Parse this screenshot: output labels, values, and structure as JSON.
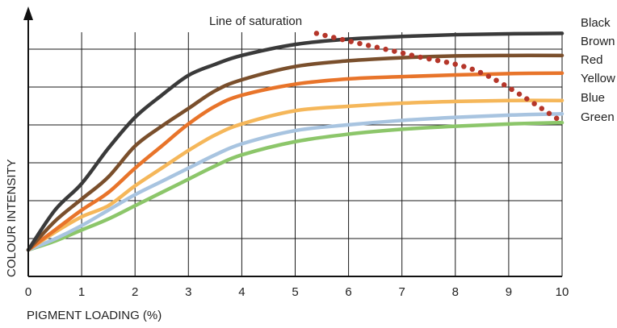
{
  "chart_data": {
    "type": "line",
    "xlabel": "PIGMENT LOADING (%)",
    "ylabel": "COLOUR INTENSITY",
    "xlim": [
      0,
      10
    ],
    "ylim": [
      0,
      6
    ],
    "x_ticks": [
      "0",
      "1",
      "2",
      "3",
      "4",
      "5",
      "6",
      "7",
      "8",
      "9",
      "10"
    ],
    "grid": true,
    "legend_position": "right",
    "series": [
      {
        "name": "Black",
        "color": "#3a3a3a",
        "x": [
          0,
          0.5,
          1,
          1.5,
          2,
          2.5,
          3,
          3.5,
          4,
          5,
          6,
          7,
          8,
          9,
          10
        ],
        "y": [
          0.6,
          1.5,
          2.1,
          2.9,
          3.6,
          4.1,
          4.55,
          4.8,
          5.0,
          5.25,
          5.37,
          5.43,
          5.47,
          5.49,
          5.5
        ]
      },
      {
        "name": "Brown",
        "color": "#7a4f2c",
        "x": [
          0,
          0.5,
          1,
          1.5,
          2,
          2.5,
          3,
          3.5,
          4,
          5,
          6,
          7,
          8,
          9,
          10
        ],
        "y": [
          0.6,
          1.25,
          1.75,
          2.25,
          2.95,
          3.4,
          3.8,
          4.2,
          4.45,
          4.75,
          4.88,
          4.95,
          4.99,
          5.0,
          5.0
        ]
      },
      {
        "name": "Red",
        "color": "#e8742a",
        "x": [
          0,
          0.5,
          1,
          1.5,
          2,
          2.5,
          3,
          3.5,
          4,
          5,
          6,
          7,
          8,
          9,
          10
        ],
        "y": [
          0.6,
          1.05,
          1.5,
          1.9,
          2.45,
          2.95,
          3.45,
          3.85,
          4.1,
          4.35,
          4.47,
          4.52,
          4.56,
          4.59,
          4.6
        ]
      },
      {
        "name": "Yellow",
        "color": "#f5b75a",
        "x": [
          0,
          0.5,
          1,
          1.5,
          2,
          2.5,
          3,
          3.5,
          4,
          5,
          6,
          7,
          8,
          9,
          10
        ],
        "y": [
          0.6,
          1.0,
          1.35,
          1.6,
          2.05,
          2.45,
          2.85,
          3.2,
          3.45,
          3.75,
          3.85,
          3.92,
          3.96,
          3.98,
          3.98
        ]
      },
      {
        "name": "Blue",
        "color": "#a8c4e0",
        "x": [
          0,
          0.5,
          1,
          1.5,
          2,
          2.5,
          3,
          3.5,
          4,
          5,
          6,
          7,
          8,
          9,
          10
        ],
        "y": [
          0.6,
          0.85,
          1.15,
          1.5,
          1.85,
          2.15,
          2.45,
          2.75,
          3.0,
          3.3,
          3.43,
          3.53,
          3.6,
          3.65,
          3.68
        ]
      },
      {
        "name": "Green",
        "color": "#8cc66a",
        "x": [
          0,
          0.5,
          1,
          1.5,
          2,
          2.5,
          3,
          3.5,
          4,
          5,
          6,
          7,
          8,
          9,
          10
        ],
        "y": [
          0.6,
          0.8,
          1.05,
          1.3,
          1.6,
          1.9,
          2.2,
          2.5,
          2.75,
          3.05,
          3.22,
          3.33,
          3.4,
          3.45,
          3.48
        ]
      }
    ],
    "annotations": [
      {
        "text": "Line of saturation",
        "style": "dotted",
        "color": "#b5362a",
        "x": [
          5.4,
          6.1,
          7.2,
          8.5,
          10
        ],
        "y": [
          5.5,
          5.3,
          5.0,
          4.6,
          3.5
        ]
      }
    ]
  }
}
